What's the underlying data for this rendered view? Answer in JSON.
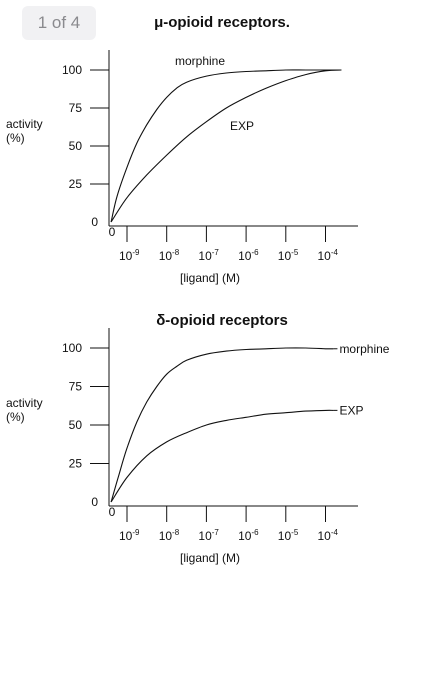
{
  "pager": {
    "label": "1 of 4"
  },
  "chart_data": [
    {
      "type": "line",
      "title": "μ-opioid receptors.",
      "xlabel": "[ligand] (M)",
      "ylabel_line1": "activity",
      "ylabel_line2": "(%)",
      "yticks": [
        "100",
        "75",
        "50",
        "25",
        "0"
      ],
      "xtick_zero": "0",
      "xtick_base": "10",
      "xtick_exps": [
        "-9",
        "-8",
        "-7",
        "-6",
        "-5",
        "-4"
      ],
      "ylim": [
        0,
        100
      ],
      "x_log_range": [
        -9.4,
        -3.45
      ],
      "series": [
        {
          "name": "morphine",
          "x": [
            -9.4,
            -9.25,
            -9.0,
            -8.75,
            -8.5,
            -8.25,
            -8.0,
            -7.75,
            -7.5,
            -7.0,
            -6.5,
            -6.0,
            -5.5,
            -5.0,
            -4.5,
            -4.0,
            -3.6
          ],
          "y": [
            0,
            17,
            36,
            52,
            64,
            74,
            82,
            88,
            92,
            96,
            98,
            99,
            99.5,
            100,
            100,
            100,
            100
          ]
        },
        {
          "name": "EXP",
          "x": [
            -9.4,
            -9.0,
            -8.5,
            -8.0,
            -7.5,
            -7.0,
            -6.5,
            -6.0,
            -5.5,
            -5.0,
            -4.5,
            -4.0,
            -3.6
          ],
          "y": [
            0,
            16,
            31,
            44,
            56,
            66,
            75,
            82,
            88,
            93,
            97,
            99.5,
            100
          ]
        }
      ]
    },
    {
      "type": "line",
      "title": "δ-opioid receptors",
      "xlabel": "[ligand] (M)",
      "ylabel_line1": "activity",
      "ylabel_line2": "(%)",
      "yticks": [
        "100",
        "75",
        "50",
        "25",
        "0"
      ],
      "xtick_zero": "0",
      "xtick_base": "10",
      "xtick_exps": [
        "-9",
        "-8",
        "-7",
        "-6",
        "-5",
        "-4"
      ],
      "ylim": [
        0,
        100
      ],
      "x_log_range": [
        -9.4,
        -3.45
      ],
      "series": [
        {
          "name": "morphine",
          "x": [
            -9.4,
            -9.2,
            -9.0,
            -8.75,
            -8.5,
            -8.25,
            -8.0,
            -7.75,
            -7.5,
            -7.0,
            -6.5,
            -6.0,
            -5.5,
            -5.0,
            -4.5,
            -4.0,
            -3.8
          ],
          "y": [
            0,
            18,
            35,
            52,
            65,
            75,
            83,
            88,
            92,
            96,
            98,
            99,
            99.5,
            100,
            100,
            99.5,
            99.5
          ]
        },
        {
          "name": "EXP",
          "x": [
            -9.4,
            -9.0,
            -8.5,
            -8.0,
            -7.5,
            -7.0,
            -6.5,
            -6.0,
            -5.5,
            -5.0,
            -4.5,
            -4.0,
            -3.8
          ],
          "y": [
            0,
            16,
            30,
            39,
            45,
            50,
            53,
            55,
            57,
            58,
            59,
            59.5,
            59.5
          ]
        }
      ]
    }
  ]
}
